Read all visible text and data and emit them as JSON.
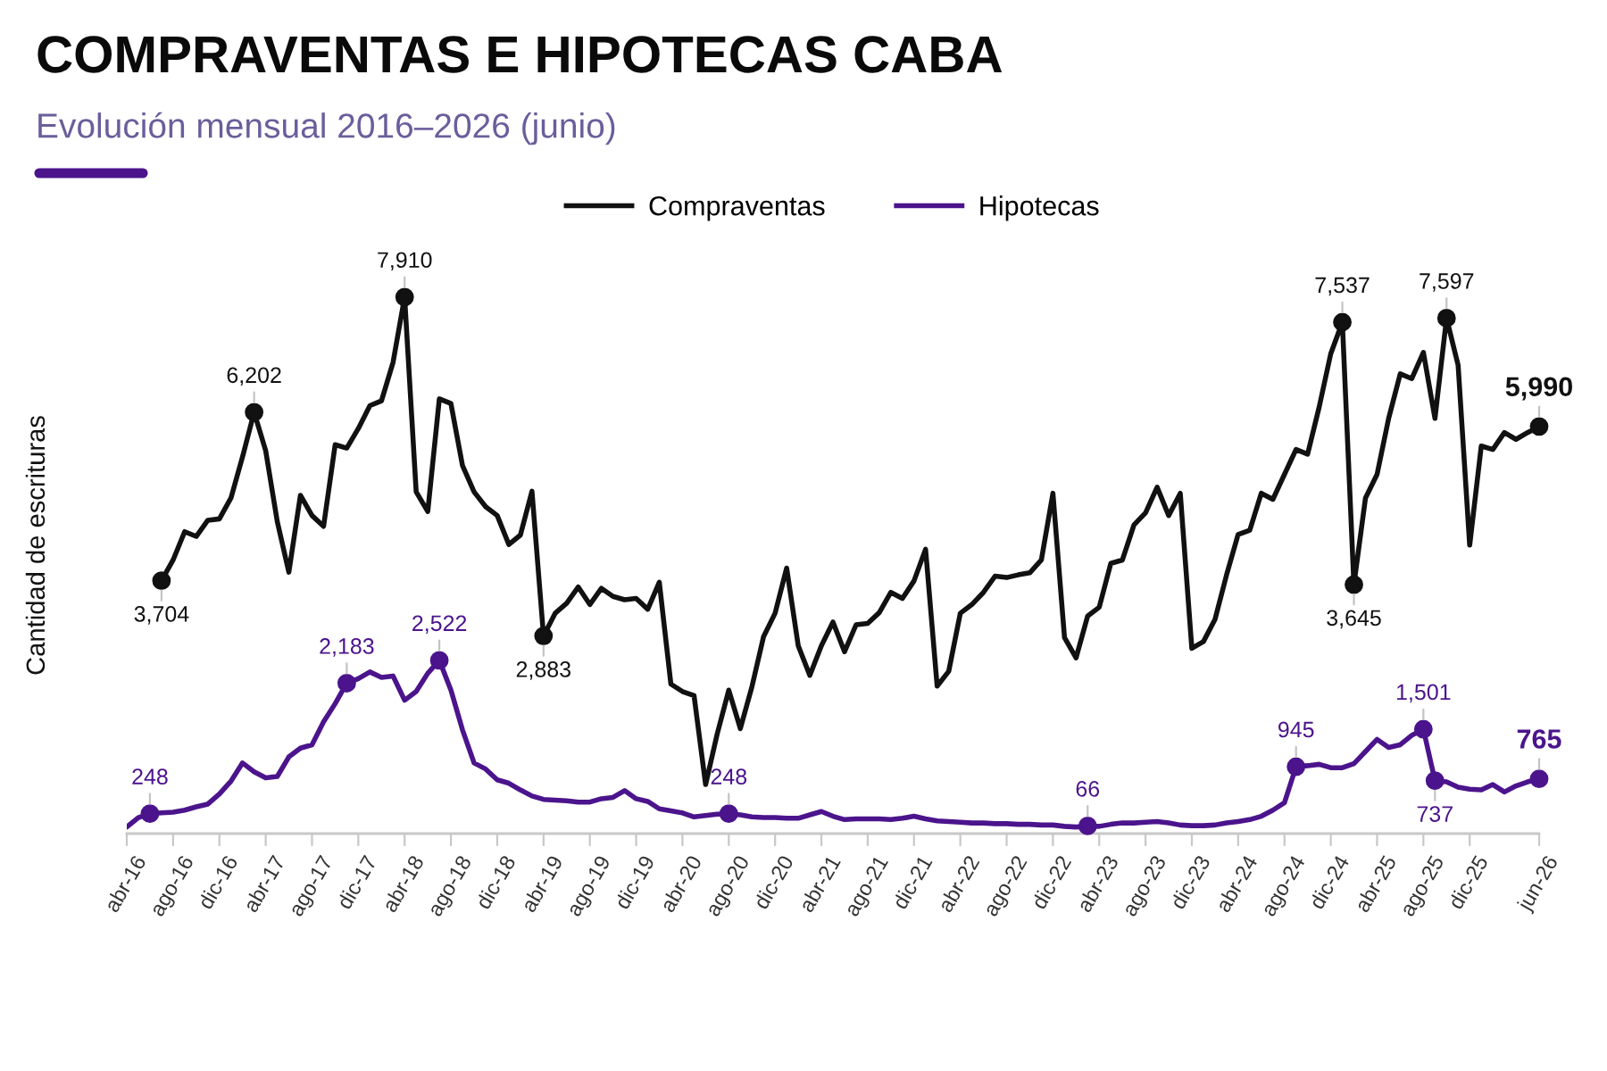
{
  "chart_data": {
    "type": "line",
    "title": "COMPRAVENTAS E HIPOTECAS CABA",
    "subtitle": "Evolución mensual 2016–2026 (junio)",
    "ylabel": "Cantidad de escrituras",
    "categories": [
      "abr-16",
      null,
      null,
      null,
      "ago-16",
      null,
      null,
      null,
      "dic-16",
      null,
      null,
      null,
      "abr-17",
      null,
      null,
      null,
      "ago-17",
      null,
      null,
      null,
      "dic-17",
      null,
      null,
      null,
      "abr-18",
      null,
      null,
      null,
      "ago-18",
      null,
      null,
      null,
      "dic-18",
      null,
      null,
      null,
      "abr-19",
      null,
      null,
      null,
      "ago-19",
      null,
      null,
      null,
      "dic-19",
      null,
      null,
      null,
      "abr-20",
      null,
      null,
      null,
      "ago-20",
      null,
      null,
      null,
      "dic-20",
      null,
      null,
      null,
      "abr-21",
      null,
      null,
      null,
      "ago-21",
      null,
      null,
      null,
      "dic-21",
      null,
      null,
      null,
      "abr-22",
      null,
      null,
      null,
      "ago-22",
      null,
      null,
      null,
      "dic-22",
      null,
      null,
      null,
      "abr-23",
      null,
      null,
      null,
      "ago-23",
      null,
      null,
      null,
      "dic-23",
      null,
      null,
      null,
      "abr-24",
      null,
      null,
      null,
      "ago-24",
      null,
      null,
      null,
      "dic-24",
      null,
      null,
      null,
      "abr-25",
      null,
      null,
      null,
      "ago-25",
      null,
      null,
      null,
      "dic-25",
      null,
      null,
      null,
      null,
      null,
      "jun-26"
    ],
    "series": [
      {
        "name": "Compraventas",
        "color": "#111111",
        "values": [
          null,
          null,
          null,
          3704,
          4010,
          4430,
          4360,
          4600,
          4620,
          4930,
          5540,
          6202,
          5630,
          4580,
          3830,
          4970,
          4670,
          4510,
          5720,
          5670,
          5960,
          6300,
          6370,
          6940,
          7910,
          5020,
          4730,
          6400,
          6330,
          5410,
          5020,
          4800,
          4670,
          4240,
          4380,
          5030,
          2883,
          3220,
          3370,
          3610,
          3350,
          3590,
          3470,
          3420,
          3440,
          3280,
          3680,
          2170,
          2060,
          2000,
          680,
          1430,
          2080,
          1510,
          2130,
          2870,
          3220,
          3890,
          2740,
          2300,
          2740,
          3090,
          2650,
          3050,
          3070,
          3230,
          3530,
          3440,
          3700,
          4170,
          2140,
          2360,
          3220,
          3350,
          3530,
          3770,
          3750,
          3790,
          3820,
          4010,
          5000,
          2860,
          2560,
          3180,
          3310,
          3960,
          4010,
          4530,
          4710,
          5090,
          4670,
          5000,
          2700,
          2800,
          3130,
          3790,
          4390,
          4450,
          5000,
          4910,
          5280,
          5650,
          5580,
          6280,
          7070,
          7537,
          3645,
          4930,
          5280,
          6110,
          6770,
          6700,
          7090,
          6110,
          7597,
          6900,
          4230,
          5700,
          5650,
          5900,
          5800,
          5900,
          5990
        ],
        "value_labels": [
          null,
          null,
          null,
          "3,704",
          null,
          null,
          null,
          null,
          null,
          null,
          null,
          "6,202",
          null,
          null,
          null,
          null,
          null,
          null,
          null,
          null,
          null,
          null,
          null,
          null,
          "7,910",
          null,
          null,
          null,
          null,
          null,
          null,
          null,
          null,
          null,
          null,
          null,
          "2,883",
          null,
          null,
          null,
          null,
          null,
          null,
          null,
          null,
          null,
          null,
          null,
          null,
          null,
          null,
          null,
          null,
          null,
          null,
          null,
          null,
          null,
          null,
          null,
          null,
          null,
          null,
          null,
          null,
          null,
          null,
          null,
          null,
          null,
          null,
          null,
          null,
          null,
          null,
          null,
          null,
          null,
          null,
          null,
          null,
          null,
          null,
          null,
          null,
          null,
          null,
          null,
          null,
          null,
          null,
          null,
          null,
          null,
          null,
          null,
          null,
          null,
          null,
          null,
          null,
          null,
          null,
          null,
          null,
          "7,537",
          "3,645",
          null,
          null,
          null,
          null,
          null,
          null,
          null,
          "7,597",
          null,
          null,
          null,
          null,
          null,
          null,
          null,
          "5,990"
        ]
      },
      {
        "name": "Hipotecas",
        "color": "#4b148c",
        "values": [
          50,
          190,
          248,
          260,
          270,
          300,
          350,
          390,
          540,
          730,
          1000,
          870,
          780,
          800,
          1090,
          1220,
          1270,
          1610,
          1880,
          2183,
          2250,
          2350,
          2270,
          2290,
          1930,
          2060,
          2330,
          2522,
          2080,
          1490,
          1000,
          910,
          750,
          700,
          600,
          510,
          460,
          450,
          440,
          420,
          420,
          470,
          490,
          590,
          470,
          430,
          320,
          290,
          260,
          200,
          220,
          240,
          248,
          230,
          200,
          190,
          190,
          180,
          180,
          230,
          280,
          210,
          160,
          170,
          170,
          170,
          160,
          180,
          210,
          170,
          140,
          130,
          120,
          110,
          110,
          100,
          100,
          90,
          90,
          80,
          80,
          60,
          50,
          66,
          60,
          90,
          110,
          110,
          120,
          130,
          110,
          80,
          70,
          70,
          80,
          110,
          130,
          160,
          210,
          300,
          410,
          945,
          960,
          980,
          930,
          930,
          990,
          1170,
          1350,
          1230,
          1270,
          1410,
          1501,
          737,
          720,
          640,
          610,
          600,
          680,
          570,
          660,
          720,
          765
        ],
        "value_labels": [
          null,
          null,
          "248",
          null,
          null,
          null,
          null,
          null,
          null,
          null,
          null,
          null,
          null,
          null,
          null,
          null,
          null,
          null,
          null,
          "2,183",
          null,
          null,
          null,
          null,
          null,
          null,
          null,
          "2,522",
          null,
          null,
          null,
          null,
          null,
          null,
          null,
          null,
          null,
          null,
          null,
          null,
          null,
          null,
          null,
          null,
          null,
          null,
          null,
          null,
          null,
          null,
          null,
          null,
          "248",
          null,
          null,
          null,
          null,
          null,
          null,
          null,
          null,
          null,
          null,
          null,
          null,
          null,
          null,
          null,
          null,
          null,
          null,
          null,
          null,
          null,
          null,
          null,
          null,
          null,
          null,
          null,
          null,
          null,
          null,
          "66",
          null,
          null,
          null,
          null,
          null,
          null,
          null,
          null,
          null,
          null,
          null,
          null,
          null,
          null,
          null,
          null,
          null,
          "945",
          null,
          null,
          null,
          null,
          null,
          null,
          null,
          null,
          null,
          null,
          "1,501",
          "737",
          null,
          null,
          null,
          null,
          null,
          null,
          null,
          null,
          "765"
        ]
      }
    ],
    "tick_labels": "x",
    "legend": "top",
    "grid": false,
    "line_style": "solid"
  }
}
